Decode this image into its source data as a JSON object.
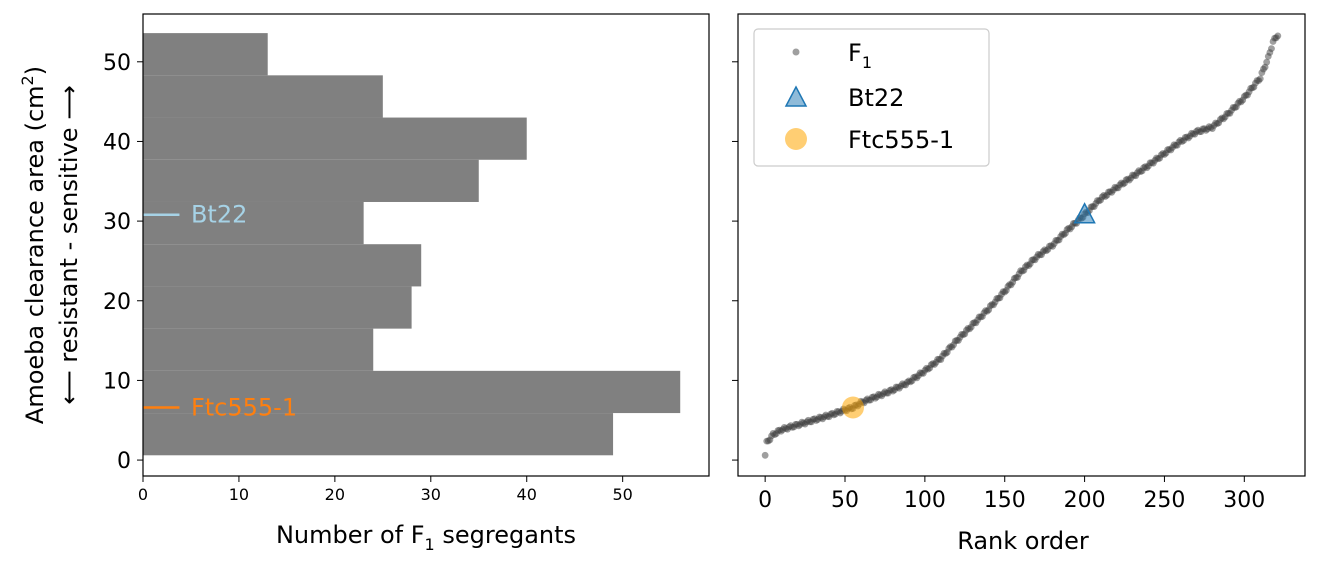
{
  "chart_data": [
    {
      "type": "bar",
      "orientation": "horizontal",
      "xlabel_main": "Number of F",
      "xlabel_sub": "1",
      "xlabel_tail": " segregants",
      "ylabel_main": "Amoeba clearance area (cm",
      "ylabel_sup": "2",
      "ylabel_tail": ")",
      "ylabel_line2": "⟵ resistant - sensitive ⟶",
      "xlim": [
        0,
        59
      ],
      "ylim": [
        -2,
        56
      ],
      "xticks": [
        0,
        10,
        20,
        30,
        40,
        50
      ],
      "yticks": [
        0,
        10,
        20,
        30,
        40,
        50
      ],
      "bar_color": "#808080",
      "bins": [
        {
          "lo": 0.6,
          "hi": 5.9,
          "count": 49
        },
        {
          "lo": 5.9,
          "hi": 11.2,
          "count": 56
        },
        {
          "lo": 11.2,
          "hi": 16.5,
          "count": 24
        },
        {
          "lo": 16.5,
          "hi": 21.8,
          "count": 28
        },
        {
          "lo": 21.8,
          "hi": 27.1,
          "count": 29
        },
        {
          "lo": 27.1,
          "hi": 32.4,
          "count": 23
        },
        {
          "lo": 32.4,
          "hi": 37.7,
          "count": 35
        },
        {
          "lo": 37.7,
          "hi": 43.0,
          "count": 40
        },
        {
          "lo": 43.0,
          "hi": 48.3,
          "count": 25
        },
        {
          "lo": 48.3,
          "hi": 53.6,
          "count": 13
        }
      ],
      "annotations": [
        {
          "label": "Bt22",
          "y": 30.8,
          "color": "#a6d2e6"
        },
        {
          "label": "Ftc555-1",
          "y": 6.6,
          "color": "#ff7f0e"
        }
      ]
    },
    {
      "type": "scatter",
      "xlabel": "Rank order",
      "xlim": [
        -17,
        338
      ],
      "ylim": [
        -2,
        56
      ],
      "xticks": [
        0,
        50,
        100,
        150,
        200,
        250,
        300
      ],
      "yticks": [
        0,
        10,
        20,
        30,
        40,
        50
      ],
      "n_points": 322,
      "curve_x": [
        0,
        1,
        5,
        10,
        20,
        30,
        40,
        50,
        55,
        60,
        70,
        80,
        90,
        100,
        110,
        120,
        130,
        140,
        150,
        160,
        170,
        180,
        190,
        200,
        210,
        220,
        230,
        240,
        250,
        260,
        270,
        280,
        290,
        300,
        310,
        315,
        318,
        321
      ],
      "curve_y": [
        0.6,
        2.2,
        3.2,
        3.8,
        4.4,
        5.0,
        5.6,
        6.3,
        6.6,
        7.2,
        8.0,
        8.8,
        9.8,
        11.2,
        12.8,
        15.0,
        17.0,
        19.0,
        21.2,
        23.6,
        25.5,
        27.0,
        29.0,
        30.8,
        32.8,
        34.2,
        35.6,
        37.0,
        38.5,
        40.0,
        41.2,
        41.8,
        43.5,
        45.5,
        48.0,
        50.5,
        52.5,
        53.4
      ],
      "series": [
        {
          "name": "F",
          "name_sub": "1",
          "color": "#404040",
          "marker": "circle"
        },
        {
          "name": "Bt22",
          "color": "#1f77b4",
          "marker": "triangle",
          "x": 200,
          "y": 30.8
        },
        {
          "name": "Ftc555-1",
          "color": "#ffa500",
          "marker": "circle",
          "x": 55,
          "y": 6.6
        }
      ],
      "legend_position": "upper-left"
    }
  ]
}
